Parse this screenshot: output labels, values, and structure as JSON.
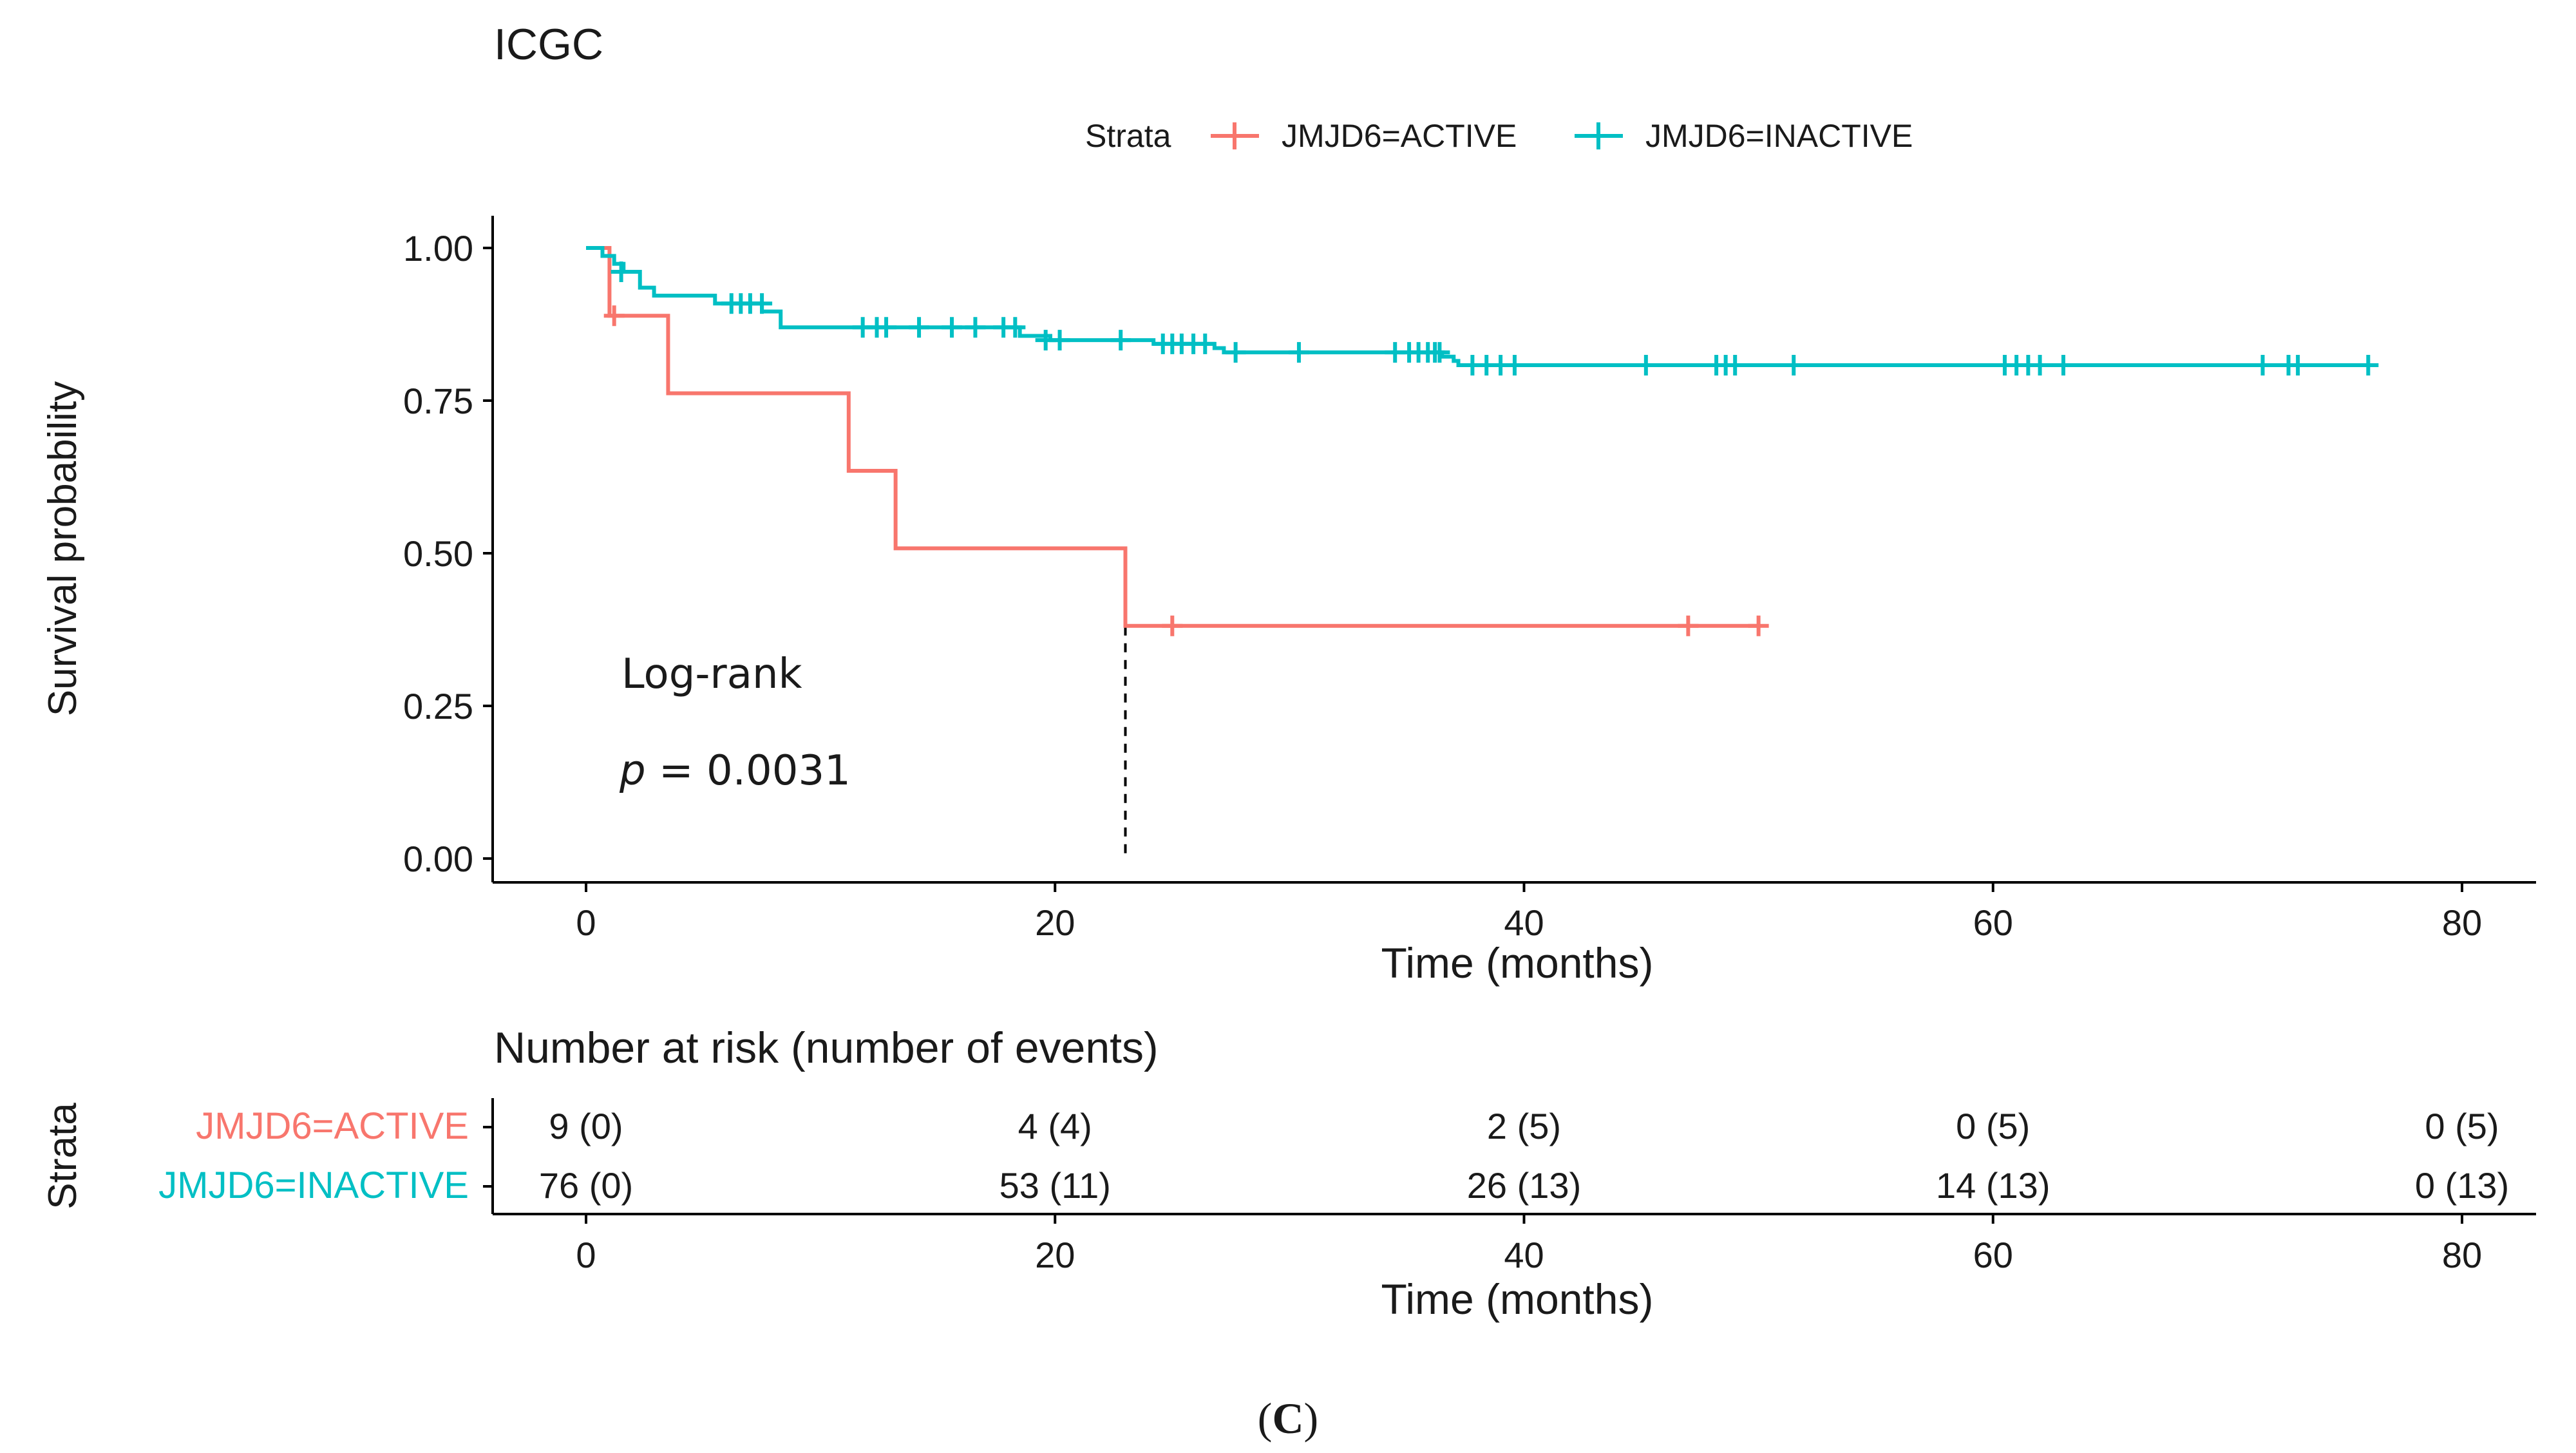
{
  "chart_data": {
    "type": "line",
    "subtype": "kaplan-meier",
    "title": "ICGC",
    "legend": {
      "title": "Strata",
      "position": "top",
      "entries": [
        "JMJD6=ACTIVE",
        "JMJD6=INACTIVE"
      ]
    },
    "xlabel": "Time (months)",
    "ylabel": "Survival probability",
    "xlim": [
      0,
      80
    ],
    "ylim": [
      0,
      1
    ],
    "x_ticks": [
      "0",
      "20",
      "40",
      "60",
      "80"
    ],
    "y_ticks": [
      "0.00",
      "0.25",
      "0.50",
      "0.75",
      "1.00"
    ],
    "x_tick_values": [
      0,
      20,
      40,
      60,
      80
    ],
    "y_tick_values": [
      0,
      0.25,
      0.5,
      0.75,
      1.0
    ],
    "annotation": {
      "test": "Log-rank",
      "p_symbol": "p",
      "p_text": " = 0.0031"
    },
    "median_line": {
      "x": 23,
      "y": 0.38
    },
    "series": [
      {
        "name": "JMJD6=ACTIVE",
        "color": "#F8766D",
        "steps": [
          [
            0,
            1.0
          ],
          [
            1.0,
            0.889
          ],
          [
            3.5,
            0.762
          ],
          [
            11.2,
            0.635
          ],
          [
            13.2,
            0.508
          ],
          [
            23.0,
            0.381
          ],
          [
            50.0,
            0.381
          ]
        ],
        "censored": [
          [
            1.2,
            0.889
          ],
          [
            25.0,
            0.381
          ],
          [
            47.0,
            0.381
          ],
          [
            50.0,
            0.381
          ]
        ]
      },
      {
        "name": "JMJD6=INACTIVE",
        "color": "#00BFC4",
        "steps": [
          [
            0,
            1.0
          ],
          [
            0.7,
            0.987
          ],
          [
            1.2,
            0.974
          ],
          [
            1.6,
            0.961
          ],
          [
            2.3,
            0.935
          ],
          [
            2.9,
            0.922
          ],
          [
            5.5,
            0.909
          ],
          [
            7.5,
            0.896
          ],
          [
            8.3,
            0.87
          ],
          [
            18.5,
            0.856
          ],
          [
            19.8,
            0.849
          ],
          [
            24.2,
            0.843
          ],
          [
            26.8,
            0.836
          ],
          [
            27.2,
            0.829
          ],
          [
            36.5,
            0.822
          ],
          [
            37.0,
            0.815
          ],
          [
            37.2,
            0.808
          ],
          [
            76.0,
            0.808
          ]
        ],
        "censored": [
          [
            1.5,
            0.961
          ],
          [
            6.2,
            0.909
          ],
          [
            6.6,
            0.909
          ],
          [
            7.0,
            0.909
          ],
          [
            7.5,
            0.909
          ],
          [
            11.8,
            0.87
          ],
          [
            12.4,
            0.87
          ],
          [
            12.8,
            0.87
          ],
          [
            14.2,
            0.87
          ],
          [
            15.6,
            0.87
          ],
          [
            16.6,
            0.87
          ],
          [
            17.8,
            0.87
          ],
          [
            18.3,
            0.87
          ],
          [
            19.6,
            0.849
          ],
          [
            20.2,
            0.849
          ],
          [
            22.8,
            0.849
          ],
          [
            24.6,
            0.843
          ],
          [
            25.0,
            0.843
          ],
          [
            25.4,
            0.843
          ],
          [
            25.9,
            0.843
          ],
          [
            26.4,
            0.843
          ],
          [
            27.7,
            0.829
          ],
          [
            30.4,
            0.829
          ],
          [
            34.5,
            0.829
          ],
          [
            35.1,
            0.829
          ],
          [
            35.5,
            0.829
          ],
          [
            35.9,
            0.829
          ],
          [
            36.2,
            0.829
          ],
          [
            36.4,
            0.829
          ],
          [
            37.8,
            0.808
          ],
          [
            38.4,
            0.808
          ],
          [
            39.0,
            0.808
          ],
          [
            39.6,
            0.808
          ],
          [
            45.2,
            0.808
          ],
          [
            48.2,
            0.808
          ],
          [
            48.6,
            0.808
          ],
          [
            49.0,
            0.808
          ],
          [
            51.5,
            0.808
          ],
          [
            60.5,
            0.808
          ],
          [
            61.0,
            0.808
          ],
          [
            61.5,
            0.808
          ],
          [
            62.0,
            0.808
          ],
          [
            63.0,
            0.808
          ],
          [
            71.5,
            0.808
          ],
          [
            72.6,
            0.808
          ],
          [
            73.0,
            0.808
          ],
          [
            76.0,
            0.808
          ]
        ]
      }
    ]
  },
  "risk_table": {
    "title": "Number at risk (number of events)",
    "y_title": "Strata",
    "xlabel": "Time (months)",
    "x_ticks": [
      "0",
      "20",
      "40",
      "60",
      "80"
    ],
    "rows": [
      {
        "label": "JMJD6=ACTIVE",
        "color": "#F8766D",
        "values": [
          "9 (0)",
          "4 (4)",
          "2 (5)",
          "0 (5)",
          "0 (5)"
        ]
      },
      {
        "label": "JMJD6=INACTIVE",
        "color": "#00BFC4",
        "values": [
          "76 (0)",
          "53 (11)",
          "26 (13)",
          "14 (13)",
          "0 (13)"
        ]
      }
    ]
  },
  "caption": {
    "open": "(",
    "letter": "C",
    "close": ")"
  }
}
